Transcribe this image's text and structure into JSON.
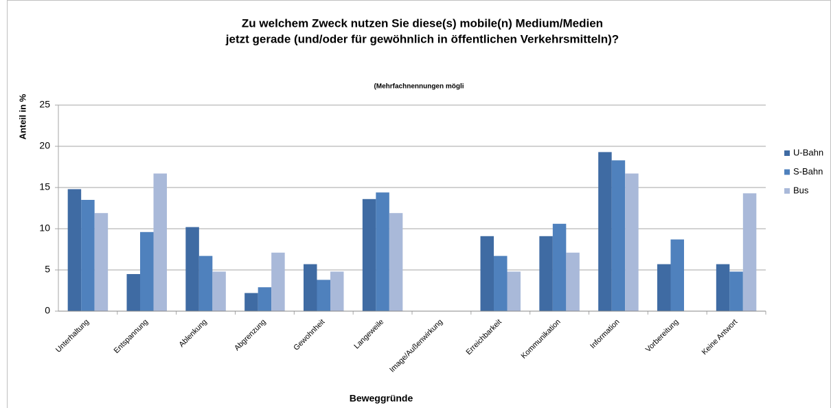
{
  "chart_data": {
    "type": "bar",
    "title": [
      "Zu welchem Zweck nutzen Sie diese(s) mobile(n) Medium/Medien",
      "jetzt gerade (und/oder für gewöhnlich in öffentlichen Verkehrsmitteln)?"
    ],
    "subtitle": "(Mehrfachnennungen mögli",
    "ylabel": "Anteil in %",
    "xlabel": "Beweggründe",
    "categories": [
      "Unterhaltung",
      "Entspannung",
      "Ablenkung",
      "Abgrenzung",
      "Gewohnheit",
      "Langeweile",
      "Image/Außenwirkung",
      "Erreichbarkeit",
      "Kommunikation",
      "Information",
      "Vorbereitung",
      "Keine Antwort"
    ],
    "series": [
      {
        "name": "U-Bahn",
        "color": "#3f6ba3",
        "values": [
          14.8,
          4.5,
          10.2,
          2.2,
          5.7,
          13.6,
          0,
          9.1,
          9.1,
          19.3,
          5.7,
          5.7
        ]
      },
      {
        "name": "S-Bahn",
        "color": "#4f81bd",
        "values": [
          13.5,
          9.6,
          6.7,
          2.9,
          3.8,
          14.4,
          0,
          6.7,
          10.6,
          18.3,
          8.7,
          4.8
        ]
      },
      {
        "name": "Bus",
        "color": "#a9b9d9",
        "values": [
          11.9,
          16.7,
          4.8,
          7.1,
          4.8,
          11.9,
          0,
          4.8,
          7.1,
          16.7,
          0,
          14.3
        ]
      }
    ],
    "ylim": [
      0,
      25
    ],
    "yticks": [
      0,
      5,
      10,
      15,
      20,
      25
    ],
    "grid": true,
    "legend": "right"
  }
}
